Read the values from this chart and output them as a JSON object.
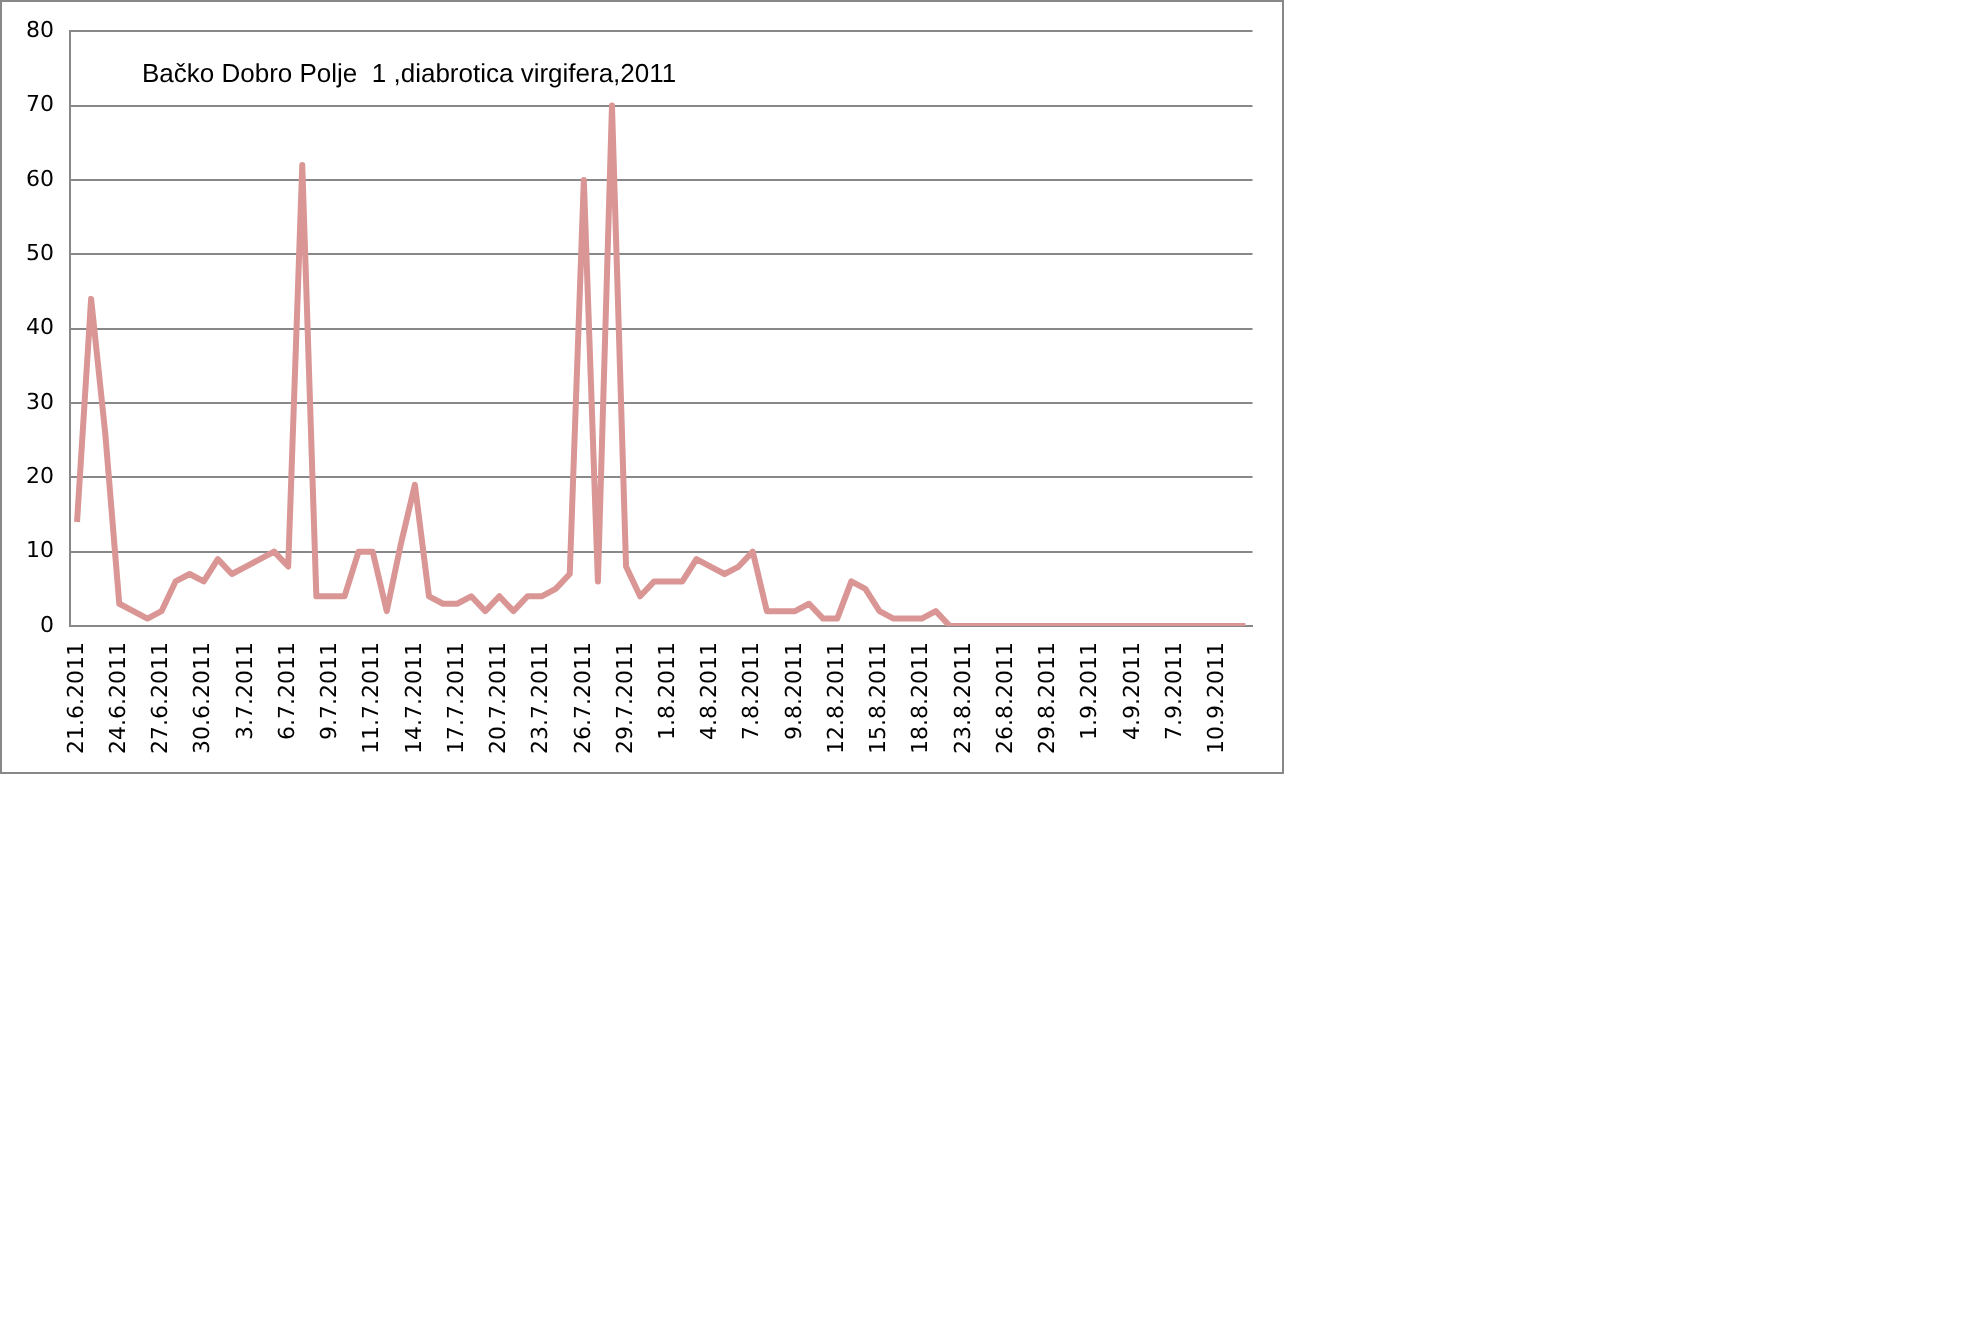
{
  "chart_data": {
    "type": "line",
    "title": "Bačko Dobro Polje  1 ,diabrotica virgifera,2011",
    "categories": [
      "21.6.2011",
      null,
      null,
      "24.6.2011",
      null,
      null,
      "27.6.2011",
      null,
      null,
      "30.6.2011",
      null,
      null,
      "3.7.2011",
      null,
      null,
      "6.7.2011",
      null,
      null,
      "9.7.2011",
      null,
      null,
      "11.7.2011",
      null,
      null,
      "14.7.2011",
      null,
      null,
      "17.7.2011",
      null,
      null,
      "20.7.2011",
      null,
      null,
      "23.7.2011",
      null,
      null,
      "26.7.2011",
      null,
      null,
      "29.7.2011",
      null,
      null,
      "1.8.2011",
      null,
      null,
      "4.8.2011",
      null,
      null,
      "7.8.2011",
      null,
      null,
      "9.8.2011",
      null,
      null,
      "12.8.2011",
      null,
      null,
      "15.8.2011",
      null,
      null,
      "18.8.2011",
      null,
      null,
      "23.8.2011",
      null,
      null,
      "26.8.2011",
      null,
      null,
      "29.8.2011",
      null,
      null,
      "1.9.2011",
      null,
      null,
      "4.9.2011",
      null,
      null,
      "7.9.2011",
      null,
      null,
      "10.9.2011",
      null,
      null
    ],
    "series": [
      {
        "color": "#d99694",
        "values": [
          14,
          44,
          26,
          3,
          2,
          1,
          2,
          6,
          7,
          6,
          9,
          7,
          8,
          9,
          10,
          8,
          62,
          4,
          4,
          4,
          10,
          10,
          2,
          11,
          19,
          4,
          3,
          3,
          4,
          2,
          4,
          2,
          4,
          4,
          5,
          7,
          60,
          6,
          70,
          8,
          4,
          6,
          6,
          6,
          9,
          8,
          7,
          8,
          10,
          2,
          2,
          2,
          3,
          1,
          1,
          6,
          5,
          2,
          1,
          1,
          1,
          2,
          0,
          0,
          0,
          0,
          0,
          0,
          0,
          0,
          0,
          0,
          0,
          0,
          0,
          0,
          0,
          0,
          0,
          0,
          0,
          0,
          0,
          0
        ]
      }
    ],
    "ylim": [
      0,
      80
    ],
    "yticks": [
      0,
      10,
      20,
      30,
      40,
      50,
      60,
      70,
      80
    ],
    "grid": "y",
    "legend": false,
    "marker": "none",
    "line_style": "solid"
  }
}
